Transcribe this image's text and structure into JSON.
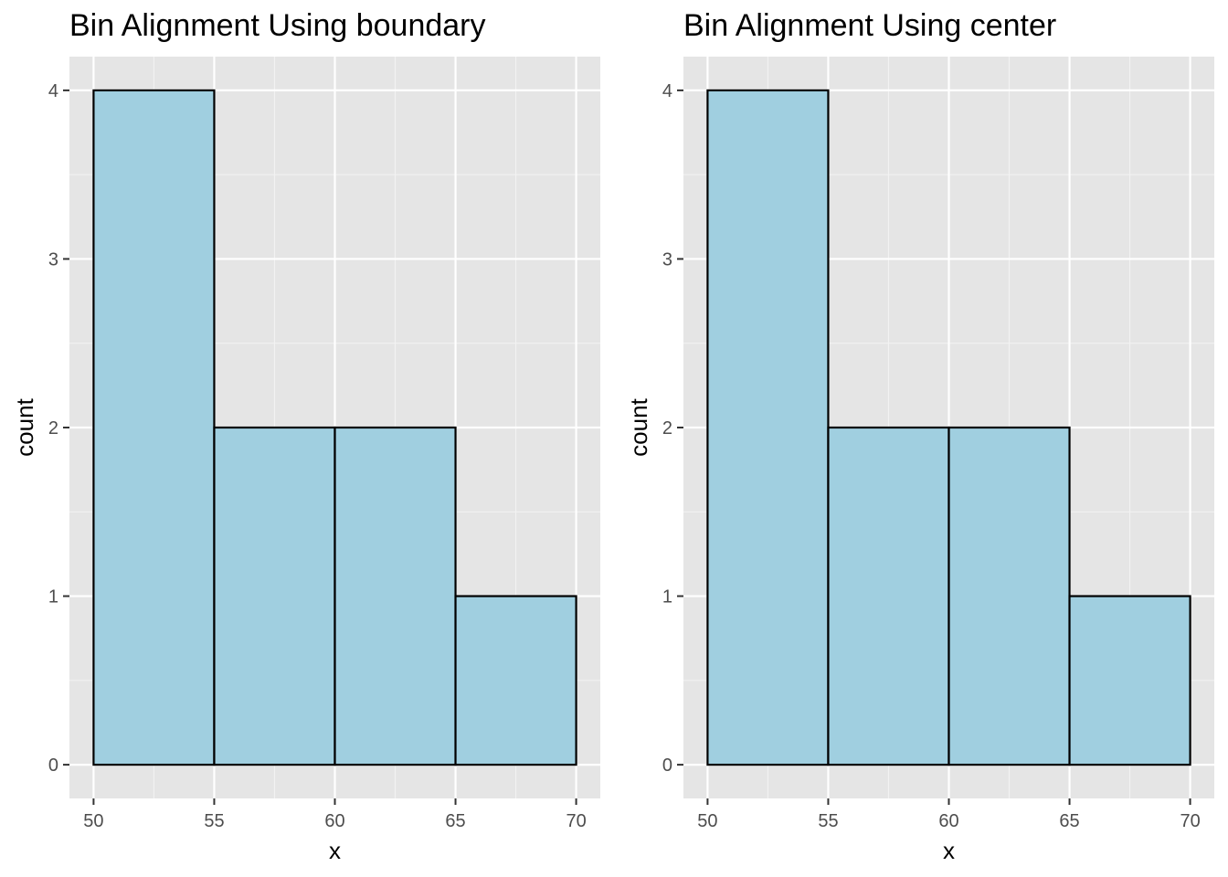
{
  "colors": {
    "panel_background": "#e5e5e5",
    "grid_major": "#ffffff",
    "grid_minor": "#f2f2f2",
    "bar_fill": "#a0cfe0",
    "bar_outline": "#000000",
    "tick_color": "#333333"
  },
  "chart_data": [
    {
      "type": "bar",
      "subtype": "histogram",
      "title": "Bin Alignment Using boundary",
      "xlabel": "x",
      "ylabel": "count",
      "bins": [
        {
          "start": 50,
          "end": 55,
          "count": 4
        },
        {
          "start": 55,
          "end": 60,
          "count": 2
        },
        {
          "start": 60,
          "end": 65,
          "count": 2
        },
        {
          "start": 65,
          "end": 70,
          "count": 1
        }
      ],
      "xlim": [
        49,
        71
      ],
      "ylim": [
        -0.2,
        4.2
      ],
      "x_ticks": [
        50,
        55,
        60,
        65,
        70
      ],
      "x_minor_ticks": [
        52.5,
        57.5,
        62.5,
        67.5
      ],
      "y_ticks": [
        0,
        1,
        2,
        3,
        4
      ],
      "y_minor_ticks": [
        0.5,
        1.5,
        2.5,
        3.5
      ],
      "grid": true,
      "legend": "none"
    },
    {
      "type": "bar",
      "subtype": "histogram",
      "title": "Bin Alignment Using center",
      "xlabel": "x",
      "ylabel": "count",
      "bins": [
        {
          "start": 50,
          "end": 55,
          "count": 4
        },
        {
          "start": 55,
          "end": 60,
          "count": 2
        },
        {
          "start": 60,
          "end": 65,
          "count": 2
        },
        {
          "start": 65,
          "end": 70,
          "count": 1
        }
      ],
      "xlim": [
        49,
        71
      ],
      "ylim": [
        -0.2,
        4.2
      ],
      "x_ticks": [
        50,
        55,
        60,
        65,
        70
      ],
      "x_minor_ticks": [
        52.5,
        57.5,
        62.5,
        67.5
      ],
      "y_ticks": [
        0,
        1,
        2,
        3,
        4
      ],
      "y_minor_ticks": [
        0.5,
        1.5,
        2.5,
        3.5
      ],
      "grid": true,
      "legend": "none"
    }
  ]
}
